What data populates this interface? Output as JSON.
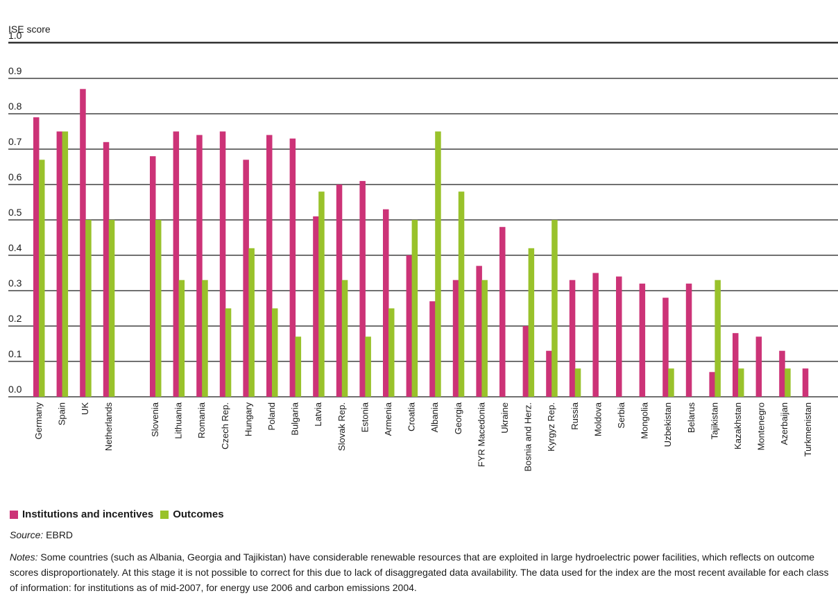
{
  "chart_data": {
    "type": "bar",
    "ylabel": "ISE score",
    "ylim": [
      0,
      1.0
    ],
    "yticks": [
      "0.0",
      "0.1",
      "0.2",
      "0.3",
      "0.4",
      "0.5",
      "0.6",
      "0.7",
      "0.8",
      "0.9",
      "1.0"
    ],
    "grid": true,
    "categories": [
      "Germany",
      "Spain",
      "UK",
      "Netherlands",
      "",
      "Slovenia",
      "Lithuania",
      "Romania",
      "Czech Rep.",
      "Hungary",
      "Poland",
      "Bulgaria",
      "Latvia",
      "Slovak Rep.",
      "Estonia",
      "Armenia",
      "Croatia",
      "Albania",
      "Georgia",
      "FYR Macedonia",
      "Ukraine",
      "Bosnia and Herz.",
      "Kyrgyz Rep.",
      "Russia",
      "Moldova",
      "Serbia",
      "Mongolia",
      "Uzbekistan",
      "Belarus",
      "Tajikistan",
      "Kazakhstan",
      "Montenegro",
      "Azerbaijan",
      "Turkmenistan"
    ],
    "series": [
      {
        "name": "Institutions and incentives",
        "color": "#cc3377",
        "values": [
          0.79,
          0.75,
          0.87,
          0.72,
          null,
          0.68,
          0.75,
          0.74,
          0.75,
          0.67,
          0.74,
          0.73,
          0.51,
          0.6,
          0.61,
          0.53,
          0.4,
          0.27,
          0.33,
          0.37,
          0.48,
          0.2,
          0.13,
          0.33,
          0.35,
          0.34,
          0.32,
          0.28,
          0.32,
          0.07,
          0.18,
          0.17,
          0.13,
          0.08
        ]
      },
      {
        "name": "Outcomes",
        "color": "#99c22b",
        "values": [
          0.67,
          0.75,
          0.5,
          0.5,
          null,
          0.5,
          0.33,
          0.33,
          0.25,
          0.42,
          0.25,
          0.17,
          0.58,
          0.33,
          0.17,
          0.25,
          0.5,
          0.75,
          0.58,
          0.33,
          null,
          0.42,
          0.5,
          0.08,
          null,
          null,
          null,
          0.08,
          null,
          0.33,
          0.08,
          null,
          0.08,
          null
        ]
      }
    ]
  },
  "legend": {
    "institutions": "Institutions and incentives",
    "outcomes": "Outcomes"
  },
  "source": {
    "label": "Source:",
    "text": " EBRD"
  },
  "notes": {
    "label": "Notes:",
    "text": " Some countries (such as Albania, Georgia and Tajikistan) have considerable renewable resources that are exploited in large hydroelectric power facilities, which reflects on outcome scores disproportionately. At this stage it is not possible to correct for this due to lack of disaggregated data availability. The data used for the index are the most recent available for each class of information: for institutions as of mid-2007, for energy use 2006 and carbon emissions 2004."
  }
}
